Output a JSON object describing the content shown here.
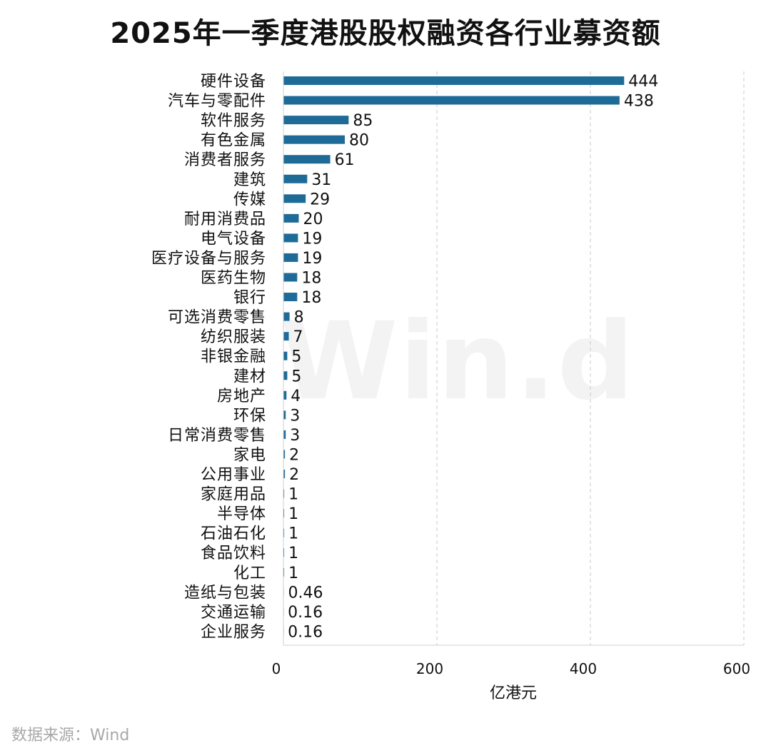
{
  "chart_data": {
    "type": "bar",
    "orientation": "horizontal",
    "title": "2025年一季度港股股权融资各行业募资额",
    "xlabel": "亿港元",
    "ylabel": "",
    "xlim": [
      0,
      600
    ],
    "xticks": [
      0,
      200,
      400,
      600
    ],
    "grid": "vertical dashed",
    "bar_color": "#1f6b97",
    "categories": [
      "硬件设备",
      "汽车与零配件",
      "软件服务",
      "有色金属",
      "消费者服务",
      "建筑",
      "传媒",
      "耐用消费品",
      "电气设备",
      "医疗设备与服务",
      "医药生物",
      "银行",
      "可选消费零售",
      "纺织服装",
      "非银金融",
      "建材",
      "房地产",
      "环保",
      "日常消费零售",
      "家电",
      "公用事业",
      "家庭用品",
      "半导体",
      "石油石化",
      "食品饮料",
      "化工",
      "造纸与包装",
      "交通运输",
      "企业服务"
    ],
    "values": [
      444,
      438,
      85,
      80,
      61,
      31,
      29,
      20,
      19,
      19,
      18,
      18,
      8,
      7,
      5,
      5,
      4,
      3,
      3,
      2,
      2,
      1,
      1,
      1,
      1,
      1,
      0.46,
      0.16,
      0.16
    ],
    "value_labels": [
      "444",
      "438",
      "85",
      "80",
      "61",
      "31",
      "29",
      "20",
      "19",
      "19",
      "18",
      "18",
      "8",
      "7",
      "5",
      "5",
      "4",
      "3",
      "3",
      "2",
      "2",
      "1",
      "1",
      "1",
      "1",
      "1",
      "0.46",
      "0.16",
      "0.16"
    ]
  },
  "watermark": "Win.d",
  "source": "数据来源：Wind"
}
